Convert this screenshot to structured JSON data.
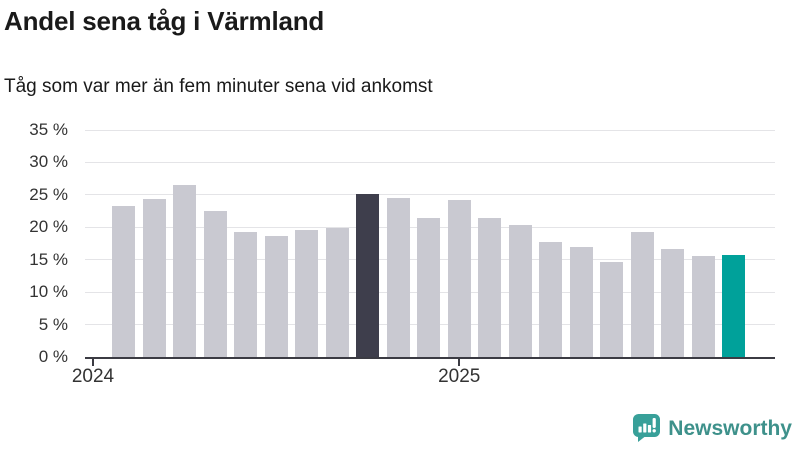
{
  "header": {
    "title": "Andel sena tåg i Värmland",
    "subtitle": "Tåg som var mer än fem minuter sena vid ankomst"
  },
  "chart_data": {
    "type": "bar",
    "title": "Andel sena tåg i Värmland",
    "subtitle": "Tåg som var mer än fem minuter sena vid ankomst",
    "xlabel": "",
    "ylabel": "",
    "unit": "%",
    "ylim": [
      0,
      35
    ],
    "ytick_step": 5,
    "ytick_suffix": " %",
    "grid": true,
    "legend_position": "none",
    "categories": [
      "2024-02",
      "2024-03",
      "2024-04",
      "2024-05",
      "2024-06",
      "2024-07",
      "2024-08",
      "2024-09",
      "2024-10",
      "2024-11",
      "2024-12",
      "2025-01",
      "2025-02",
      "2025-03",
      "2025-04",
      "2025-05",
      "2025-06",
      "2025-07",
      "2025-08",
      "2025-09",
      "2025-10"
    ],
    "values": [
      23.3,
      24.4,
      26.5,
      22.5,
      19.3,
      18.7,
      19.6,
      19.9,
      25.1,
      24.5,
      21.4,
      24.2,
      21.5,
      20.3,
      17.7,
      17.0,
      14.7,
      19.2,
      16.6,
      15.5,
      15.8
    ],
    "highlights": {
      "dark": "2024-10",
      "teal": "2025-10"
    },
    "xticks": [
      {
        "label": "2024",
        "month": "2024-01"
      },
      {
        "label": "2025",
        "month": "2025-01"
      }
    ]
  },
  "colors": {
    "bar": "#c9c9d1",
    "bar_dark": "#3e3e4c",
    "bar_teal": "#00a19a",
    "grid": "#e4e4e7",
    "axis": "#3b3b43",
    "tick_text": "#333333",
    "logo": "#3e918b",
    "logo_icon": "#38a099"
  },
  "branding": {
    "logo_text": "Newsworthy"
  }
}
